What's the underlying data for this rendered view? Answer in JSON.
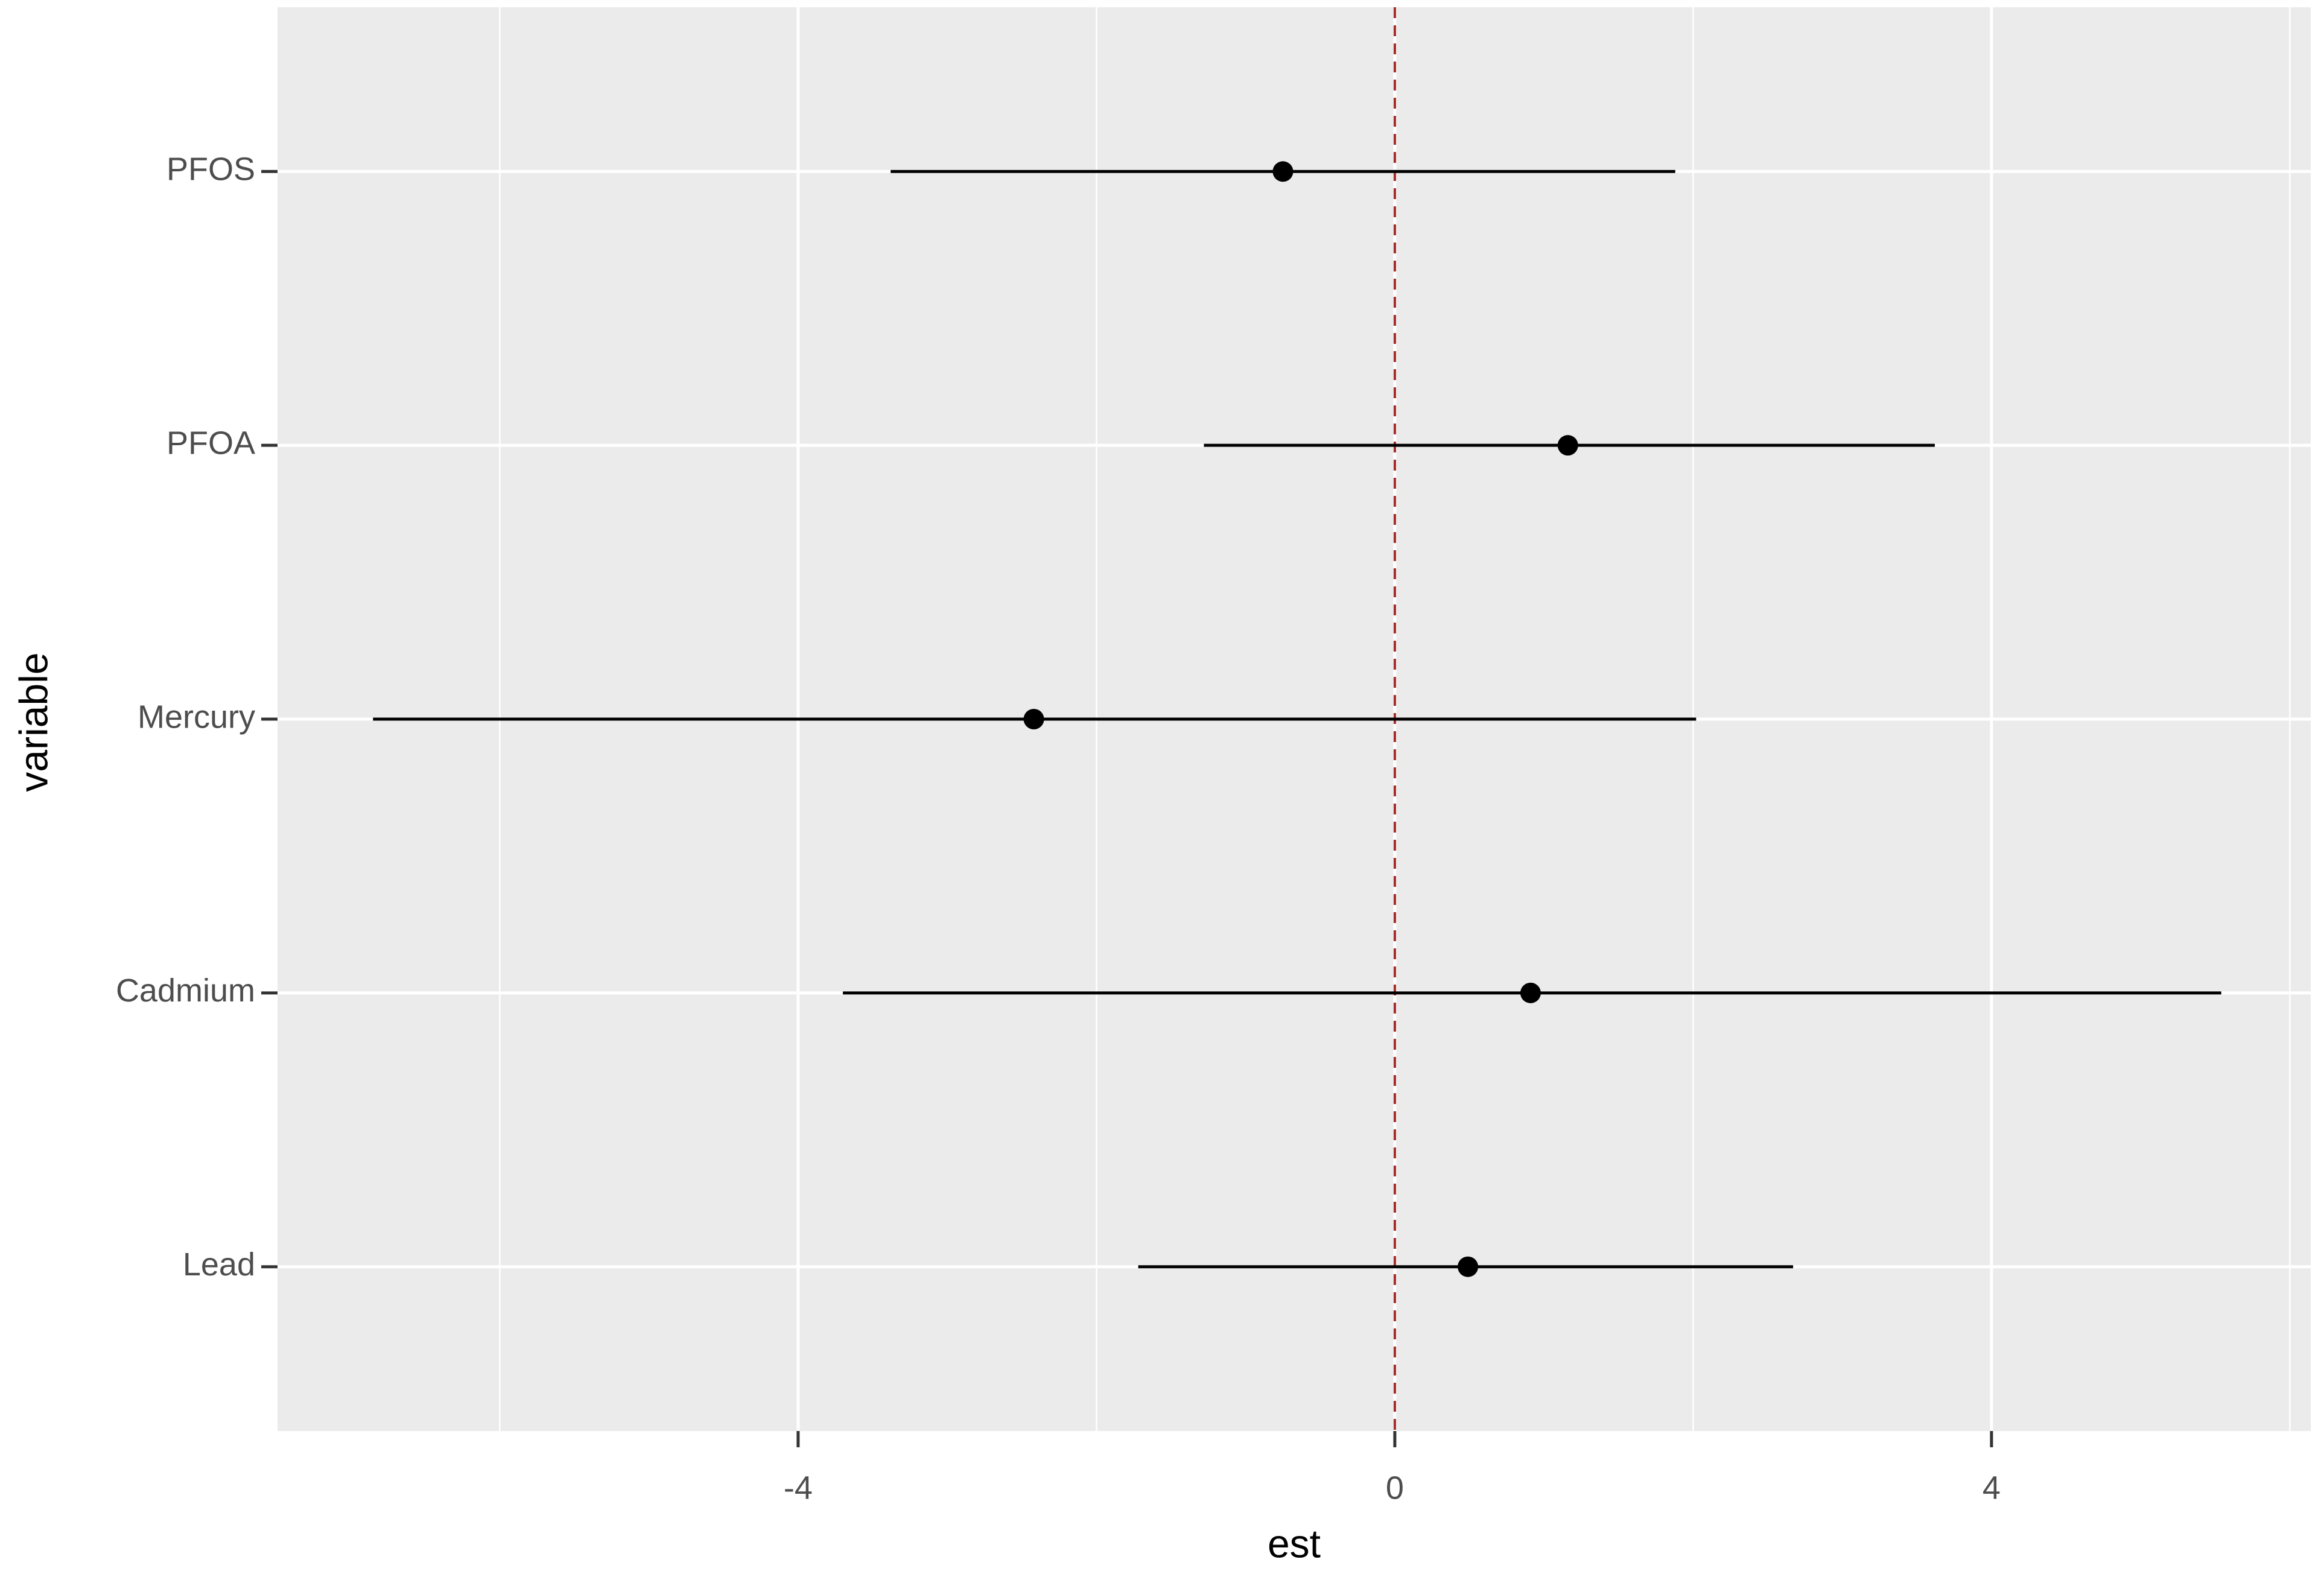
{
  "chart_data": {
    "type": "pointrange",
    "x_label": "est",
    "y_label": "variable",
    "categories": [
      "Lead",
      "Cadmium",
      "Mercury",
      "PFOA",
      "PFOS"
    ],
    "values": [
      0.49,
      0.91,
      -2.42,
      1.16,
      -0.75
    ],
    "lower": [
      -1.72,
      -3.7,
      -6.85,
      -1.28,
      -3.38
    ],
    "upper": [
      2.67,
      5.54,
      2.02,
      3.62,
      1.88
    ],
    "xlim": [
      -7.49,
      6.14
    ],
    "xticks": [
      -4,
      0,
      4
    ],
    "x_minor_ticks": [
      -6,
      -2,
      2,
      6
    ],
    "grid": true,
    "color": "#000000",
    "reference_line": {
      "value": 0,
      "color": "#a52a2a"
    }
  }
}
